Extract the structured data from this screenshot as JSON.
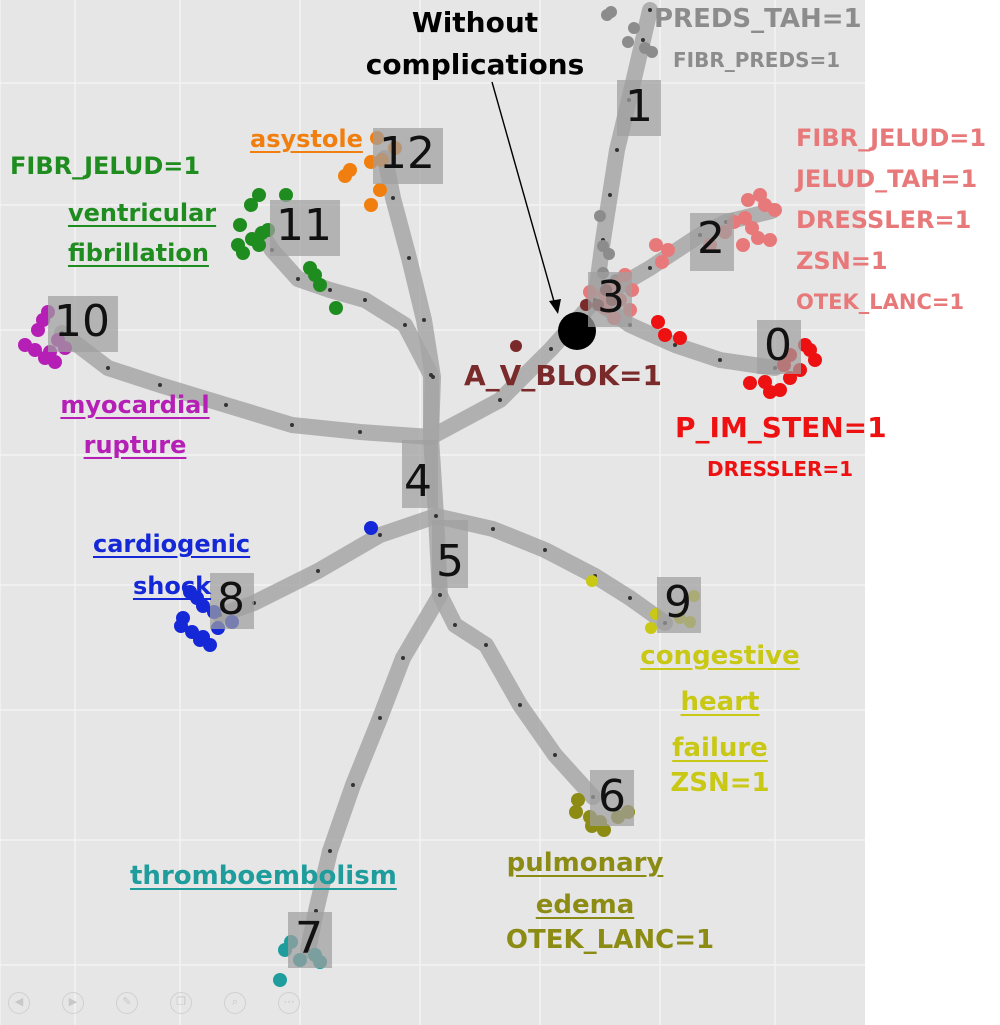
{
  "colors": {
    "gray": "#8c8c8c",
    "salmon": "#e8797a",
    "red": "#ee1111",
    "maroon": "#7a2a2a",
    "orange": "#f07f0f",
    "green": "#1e8c1e",
    "purple": "#b51fb5",
    "blue": "#1428d8",
    "yellow": "#c8c815",
    "olive": "#8c8c14",
    "teal": "#1f9d9d",
    "black": "#000000"
  },
  "labels": {
    "without_complications": [
      "Without",
      "complications"
    ],
    "preds_tah": "PREDS_TAH=1",
    "fibr_preds": "FIBR_PREDS=1",
    "node2_lines": [
      "FIBR_JELUD=1",
      "JELUD_TAH=1",
      "DRESSLER=1",
      "ZSN=1",
      "OTEK_LANC=1"
    ],
    "asystole": "asystole",
    "fibr_jelud": "FIBR_JELUD=1",
    "ventricular_fibrillation": [
      "ventricular",
      "fibrillation"
    ],
    "myocardial_rupture": [
      "myocardial",
      "rupture"
    ],
    "a_v_blok": "A_V_BLOK=1",
    "p_im_sten": "P_IM_STEN=1",
    "dressler": "DRESSLER=1",
    "cardiogenic_shock": [
      "cardiogenic",
      "shock"
    ],
    "congestive_heart_failure": [
      "congestive",
      "heart",
      "failure"
    ],
    "zsn": "ZSN=1",
    "pulmonary_edema": [
      "pulmonary",
      "edema"
    ],
    "otek_lanc": "OTEK_LANC=1",
    "thromboembolism": "thromboembolism"
  },
  "nodes": [
    "0",
    "1",
    "2",
    "3",
    "4",
    "5",
    "6",
    "7",
    "8",
    "9",
    "10",
    "11",
    "12"
  ],
  "controls": [
    "back-icon",
    "forward-icon",
    "pen-icon",
    "copy-icon",
    "zoom-icon",
    "more-icon"
  ]
}
